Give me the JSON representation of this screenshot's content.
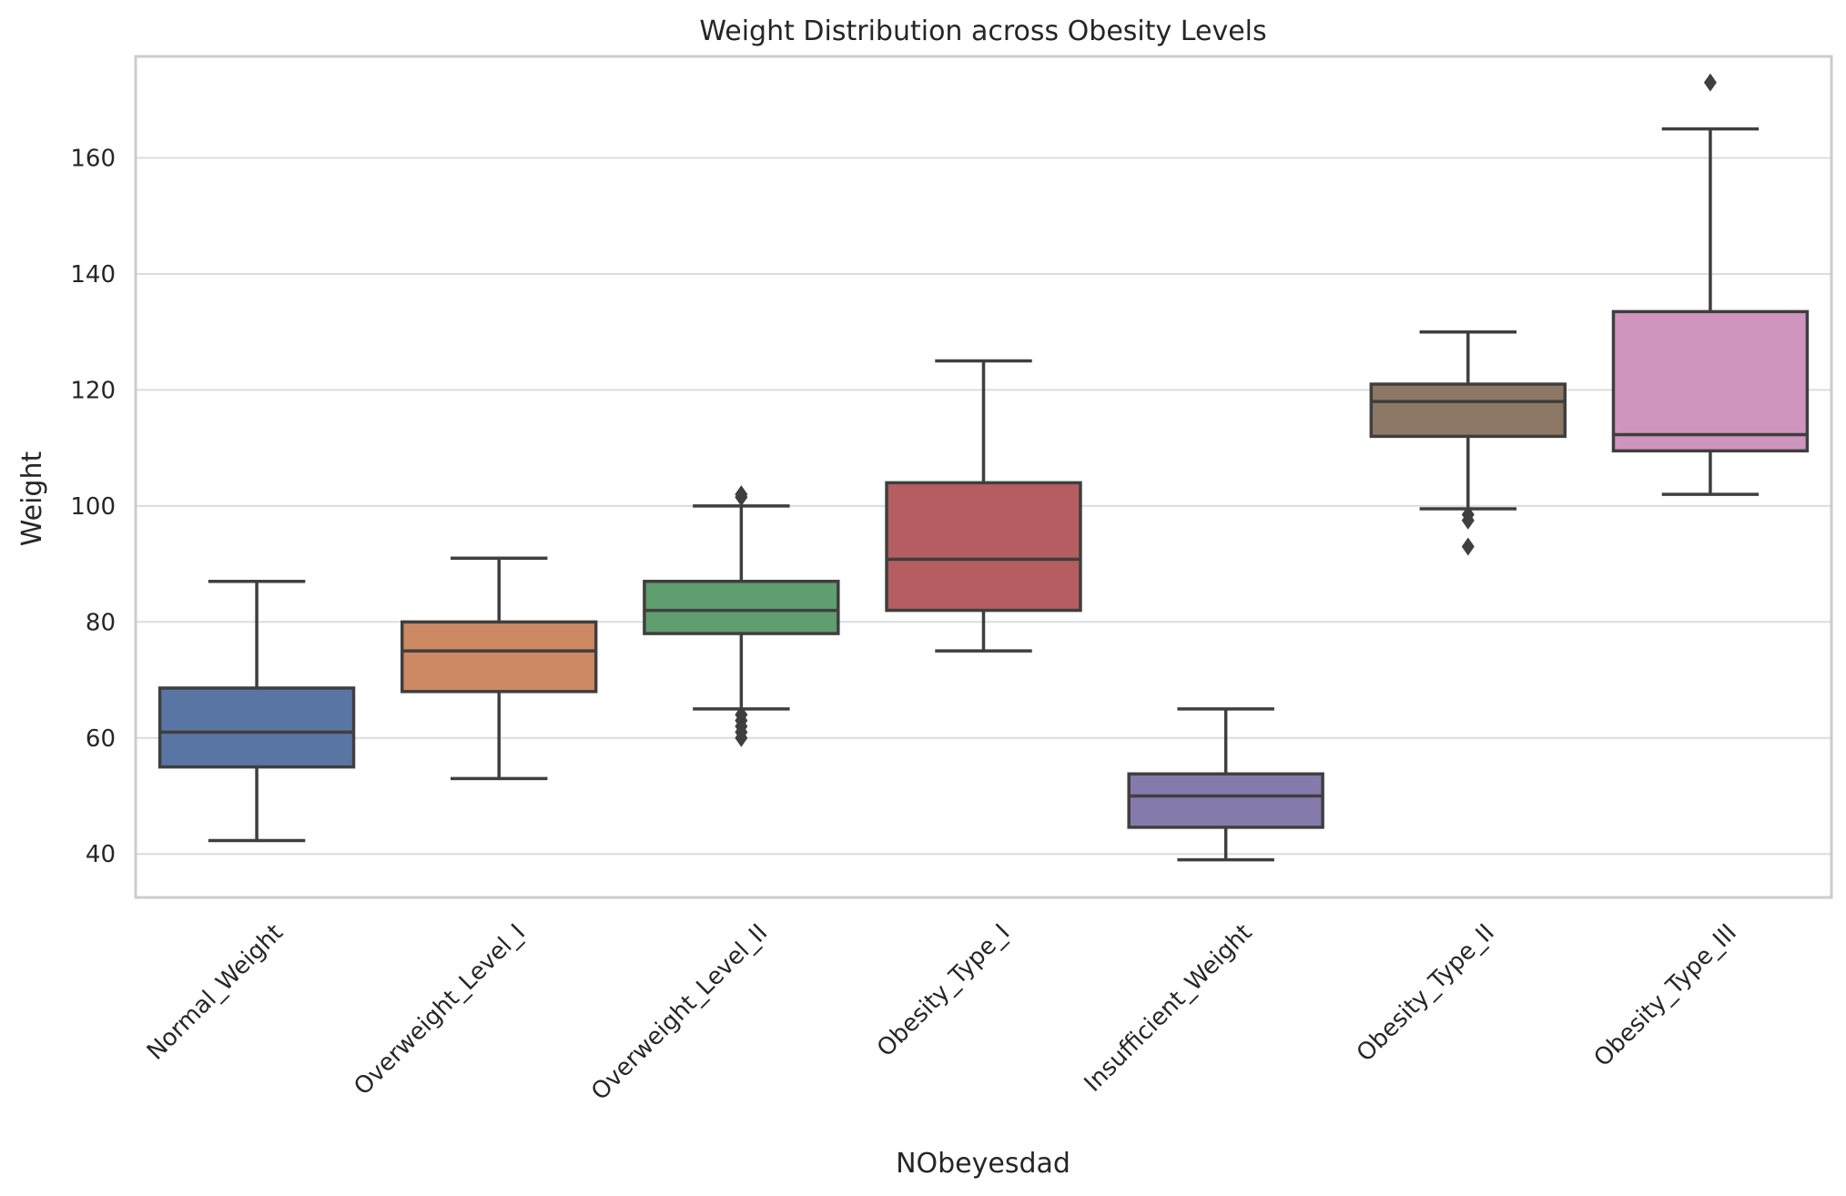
{
  "chart_data": {
    "type": "box",
    "title": "Weight Distribution across Obesity Levels",
    "xlabel": "NObeyesdad",
    "ylabel": "Weight",
    "ylim": [
      32.5,
      177.5
    ],
    "yticks": [
      40,
      60,
      80,
      100,
      120,
      140,
      160
    ],
    "grid": true,
    "categories": [
      "Normal_Weight",
      "Overweight_Level_I",
      "Overweight_Level_II",
      "Obesity_Type_I",
      "Insufficient_Weight",
      "Obesity_Type_II",
      "Obesity_Type_III"
    ],
    "boxes": [
      {
        "category": "Normal_Weight",
        "whisker_low": 42.3,
        "q1": 55.0,
        "median": 61.0,
        "q3": 68.6,
        "whisker_high": 87.0,
        "outliers": [],
        "color": "#5875a4"
      },
      {
        "category": "Overweight_Level_I",
        "whisker_low": 53.0,
        "q1": 68.0,
        "median": 75.0,
        "q3": 80.0,
        "whisker_high": 91.0,
        "outliers": [],
        "color": "#cc8963"
      },
      {
        "category": "Overweight_Level_II",
        "whisker_low": 65.0,
        "q1": 78.0,
        "median": 82.0,
        "q3": 87.0,
        "whisker_high": 100.0,
        "outliers": [
          60.0,
          61.0,
          62.0,
          63.0,
          64.0,
          101.5,
          102.0
        ],
        "color": "#5f9e6e"
      },
      {
        "category": "Obesity_Type_I",
        "whisker_low": 75.0,
        "q1": 82.0,
        "median": 90.8,
        "q3": 104.0,
        "whisker_high": 125.0,
        "outliers": [],
        "color": "#b55d60"
      },
      {
        "category": "Insufficient_Weight",
        "whisker_low": 39.0,
        "q1": 44.6,
        "median": 50.0,
        "q3": 53.8,
        "whisker_high": 65.0,
        "outliers": [],
        "color": "#857aab"
      },
      {
        "category": "Obesity_Type_II",
        "whisker_low": 99.5,
        "q1": 112.0,
        "median": 118.0,
        "q3": 121.0,
        "whisker_high": 130.0,
        "outliers": [
          93.0,
          97.5,
          98.5
        ],
        "color": "#8d7866"
      },
      {
        "category": "Obesity_Type_III",
        "whisker_low": 102.0,
        "q1": 109.5,
        "median": 112.3,
        "q3": 133.5,
        "whisker_high": 165.0,
        "outliers": [
          173.0
        ],
        "color": "#d095bf"
      }
    ]
  }
}
